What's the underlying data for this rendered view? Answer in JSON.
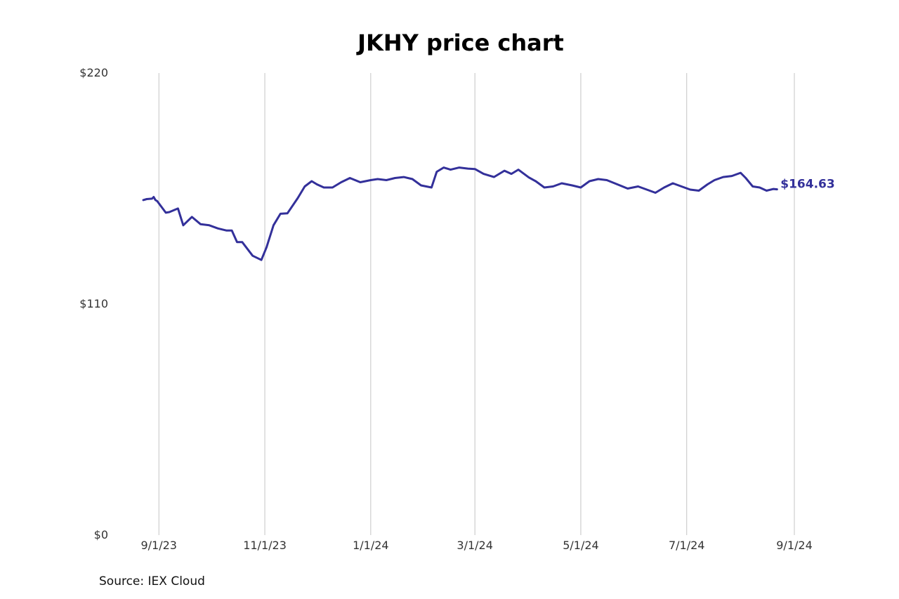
{
  "chart_data": {
    "type": "line",
    "title": "JKHY price chart",
    "source": "Source: IEX Cloud",
    "xlabel": "",
    "ylabel": "",
    "ylim": [
      0,
      220
    ],
    "y_ticks": [
      {
        "value": 0,
        "label": "$0"
      },
      {
        "value": 110,
        "label": "$110"
      },
      {
        "value": 220,
        "label": "$220"
      }
    ],
    "x_ticks": [
      {
        "date": "2023-09-01",
        "label": "9/1/23"
      },
      {
        "date": "2023-11-01",
        "label": "11/1/23"
      },
      {
        "date": "2024-01-01",
        "label": "1/1/24"
      },
      {
        "date": "2024-03-01",
        "label": "3/1/24"
      },
      {
        "date": "2024-05-01",
        "label": "5/1/24"
      },
      {
        "date": "2024-07-01",
        "label": "7/1/24"
      },
      {
        "date": "2024-09-01",
        "label": "9/1/24"
      }
    ],
    "xlim": [
      "2023-08-23",
      "2024-09-01"
    ],
    "grid": "vertical",
    "line_color": "#33309a",
    "end_label": "$164.63",
    "series": [
      {
        "x": [
          "2023-08-23",
          "2023-08-25",
          "2023-08-28",
          "2023-08-29",
          "2023-08-30",
          "2023-08-31",
          "2023-09-05",
          "2023-09-07",
          "2023-09-12",
          "2023-09-15",
          "2023-09-20",
          "2023-09-25",
          "2023-09-30",
          "2023-10-05",
          "2023-10-10",
          "2023-10-13",
          "2023-10-16",
          "2023-10-19",
          "2023-10-25",
          "2023-10-30",
          "2023-11-02",
          "2023-11-06",
          "2023-11-10",
          "2023-11-14",
          "2023-11-20",
          "2023-11-24",
          "2023-11-28",
          "2023-12-01",
          "2023-12-05",
          "2023-12-10",
          "2023-12-15",
          "2023-12-20",
          "2023-12-26",
          "2024-01-01",
          "2024-01-05",
          "2024-01-10",
          "2024-01-15",
          "2024-01-20",
          "2024-01-25",
          "2024-01-30",
          "2024-02-05",
          "2024-02-08",
          "2024-02-12",
          "2024-02-16",
          "2024-02-21",
          "2024-02-26",
          "2024-03-01",
          "2024-03-06",
          "2024-03-12",
          "2024-03-18",
          "2024-03-22",
          "2024-03-26",
          "2024-04-01",
          "2024-04-05",
          "2024-04-10",
          "2024-04-15",
          "2024-04-20",
          "2024-04-26",
          "2024-05-01",
          "2024-05-06",
          "2024-05-11",
          "2024-05-16",
          "2024-05-22",
          "2024-05-28",
          "2024-06-03",
          "2024-06-08",
          "2024-06-13",
          "2024-06-18",
          "2024-06-23",
          "2024-06-28",
          "2024-07-03",
          "2024-07-08",
          "2024-07-13",
          "2024-07-17",
          "2024-07-22",
          "2024-07-27",
          "2024-08-01",
          "2024-08-04",
          "2024-08-08",
          "2024-08-12",
          "2024-08-16",
          "2024-08-20",
          "2024-08-22"
        ],
        "values": [
          159.5,
          160,
          160.2,
          161,
          159.5,
          159,
          153.5,
          153.8,
          155.5,
          147.5,
          151.5,
          148,
          147.5,
          146,
          145,
          145,
          139.5,
          139.5,
          133,
          131,
          137,
          147.5,
          153,
          153.2,
          160.5,
          166,
          168.5,
          167,
          165.5,
          165.5,
          168,
          170,
          168,
          169,
          169.5,
          169,
          170,
          170.5,
          169.5,
          166.5,
          165.5,
          173,
          175,
          174,
          175,
          174.5,
          174.3,
          172,
          170.5,
          173.5,
          172,
          174,
          170.3,
          168.5,
          165.5,
          166,
          167.5,
          166.5,
          165.5,
          168.5,
          169.5,
          169,
          167,
          165,
          166,
          164.5,
          163,
          165.5,
          167.5,
          166,
          164.5,
          164,
          167,
          169,
          170.5,
          171,
          172.5,
          170,
          166,
          165.5,
          164,
          164.8,
          164.63
        ]
      }
    ]
  }
}
